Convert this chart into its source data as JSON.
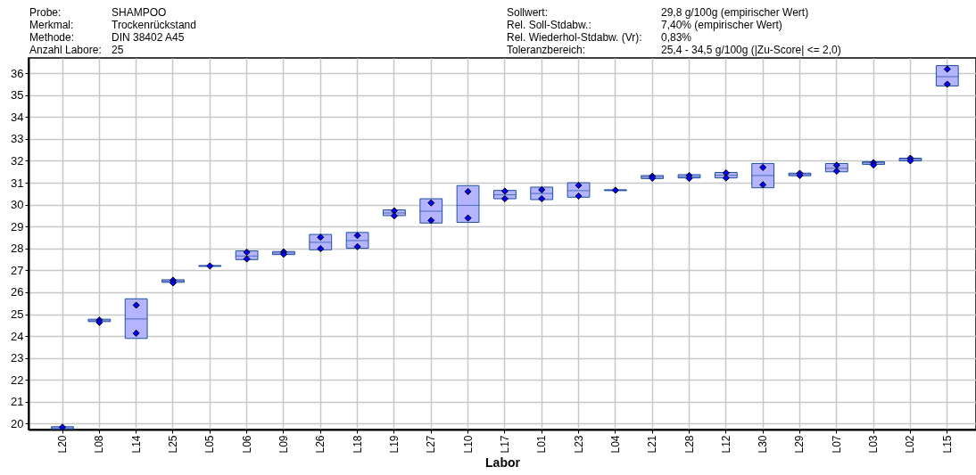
{
  "chart_data": {
    "type": "box",
    "xlabel": "Labor",
    "annotations": [
      "Probe:",
      "SHAMPOO",
      "Merkmal:",
      "Trockenrückstand",
      "Methode:",
      "DIN 38402 A45",
      "Anzahl Labore:",
      "25",
      "Sollwert:",
      "29,8 g/100g (empirischer Wert)",
      "Rel. Soll-Stdabw.:",
      "7,40% (empirischer Wert)",
      "Rel. Wiederhol-Stdabw. (Vr):",
      "0,83%",
      "Toleranzbereich:",
      "25,4 - 34,5 g/100g (|Zu-Score| <= 2,0)"
    ],
    "categories": [
      "L20",
      "L08",
      "L14",
      "L25",
      "L05",
      "L06",
      "L09",
      "L26",
      "L18",
      "L19",
      "L27",
      "L10",
      "L17",
      "L01",
      "L23",
      "L04",
      "L21",
      "L28",
      "L12",
      "L30",
      "L29",
      "L07",
      "L03",
      "L02",
      "L15"
    ],
    "ylim": [
      19.73,
      36.7
    ],
    "yticks": [
      20,
      21,
      22,
      23,
      24,
      25,
      26,
      27,
      28,
      29,
      30,
      31,
      32,
      33,
      34,
      35,
      36
    ],
    "grid": true,
    "series": [
      {
        "type": "box",
        "color": "#b4b4ff",
        "boxes": [
          {
            "low": 19.75,
            "q1": 19.75,
            "median": 19.8,
            "q3": 19.86,
            "high": 19.86
          },
          {
            "low": 24.66,
            "q1": 24.66,
            "median": 24.7,
            "q3": 24.77,
            "high": 24.77
          },
          {
            "low": 23.89,
            "q1": 23.89,
            "median": 24.78,
            "q3": 25.7,
            "high": 25.7
          },
          {
            "low": 26.45,
            "q1": 26.45,
            "median": 26.51,
            "q3": 26.57,
            "high": 26.57
          },
          {
            "low": 27.18,
            "q1": 27.18,
            "median": 27.2,
            "q3": 27.22,
            "high": 27.22
          },
          {
            "low": 27.49,
            "q1": 27.49,
            "median": 27.66,
            "q3": 27.89,
            "high": 27.89
          },
          {
            "low": 27.72,
            "q1": 27.72,
            "median": 27.79,
            "q3": 27.86,
            "high": 27.86
          },
          {
            "low": 27.94,
            "q1": 27.94,
            "median": 28.28,
            "q3": 28.64,
            "high": 28.64
          },
          {
            "low": 28.01,
            "q1": 28.01,
            "median": 28.36,
            "q3": 28.73,
            "high": 28.73
          },
          {
            "low": 29.5,
            "q1": 29.5,
            "median": 29.62,
            "q3": 29.76,
            "high": 29.76
          },
          {
            "low": 29.16,
            "q1": 29.16,
            "median": 29.7,
            "q3": 30.27,
            "high": 30.27
          },
          {
            "low": 29.19,
            "q1": 29.19,
            "median": 29.97,
            "q3": 30.87,
            "high": 30.87
          },
          {
            "low": 30.27,
            "q1": 30.27,
            "median": 30.45,
            "q3": 30.65,
            "high": 30.65
          },
          {
            "low": 30.23,
            "q1": 30.23,
            "median": 30.51,
            "q3": 30.8,
            "high": 30.8
          },
          {
            "low": 30.34,
            "q1": 30.34,
            "median": 30.64,
            "q3": 31.0,
            "high": 31.0
          },
          {
            "low": 30.64,
            "q1": 30.64,
            "median": 30.66,
            "q3": 30.68,
            "high": 30.68
          },
          {
            "low": 31.19,
            "q1": 31.19,
            "median": 31.26,
            "q3": 31.33,
            "high": 31.33
          },
          {
            "low": 31.22,
            "q1": 31.22,
            "median": 31.28,
            "q3": 31.37,
            "high": 31.37
          },
          {
            "low": 31.22,
            "q1": 31.22,
            "median": 31.34,
            "q3": 31.47,
            "high": 31.47
          },
          {
            "low": 30.77,
            "q1": 30.77,
            "median": 31.33,
            "q3": 31.88,
            "high": 31.88
          },
          {
            "low": 31.32,
            "q1": 31.32,
            "median": 31.38,
            "q3": 31.44,
            "high": 31.44
          },
          {
            "low": 31.5,
            "q1": 31.5,
            "median": 31.66,
            "q3": 31.88,
            "high": 31.88
          },
          {
            "low": 31.84,
            "q1": 31.84,
            "median": 31.91,
            "q3": 31.96,
            "high": 31.96
          },
          {
            "low": 32.0,
            "q1": 32.0,
            "median": 32.07,
            "q3": 32.12,
            "high": 32.12
          },
          {
            "low": 35.42,
            "q1": 35.42,
            "median": 35.85,
            "q3": 36.35,
            "high": 36.35
          }
        ]
      },
      {
        "type": "scatter",
        "color": "#0000ff",
        "marker": "diamond",
        "x": [
          "L20",
          "L08",
          "L08",
          "L14",
          "L14",
          "L25",
          "L25",
          "L05",
          "L06",
          "L06",
          "L09",
          "L09",
          "L26",
          "L26",
          "L18",
          "L18",
          "L19",
          "L19",
          "L27",
          "L27",
          "L10",
          "L10",
          "L17",
          "L17",
          "L01",
          "L01",
          "L23",
          "L23",
          "L04",
          "L21",
          "L21",
          "L28",
          "L28",
          "L12",
          "L12",
          "L30",
          "L30",
          "L29",
          "L29",
          "L07",
          "L07",
          "L03",
          "L03",
          "L02",
          "L02",
          "L15",
          "L15"
        ],
        "values": [
          19.84,
          24.73,
          24.62,
          25.41,
          24.13,
          26.55,
          26.43,
          27.2,
          27.83,
          27.52,
          27.84,
          27.74,
          28.51,
          27.99,
          28.59,
          28.08,
          29.72,
          29.49,
          30.08,
          29.28,
          30.6,
          29.39,
          30.62,
          30.27,
          30.68,
          30.27,
          30.88,
          30.39,
          30.66,
          31.3,
          31.21,
          31.33,
          31.2,
          31.45,
          31.22,
          31.7,
          30.91,
          31.43,
          31.33,
          31.8,
          31.53,
          31.92,
          31.81,
          32.12,
          32.0,
          36.19,
          35.5
        ]
      }
    ]
  }
}
